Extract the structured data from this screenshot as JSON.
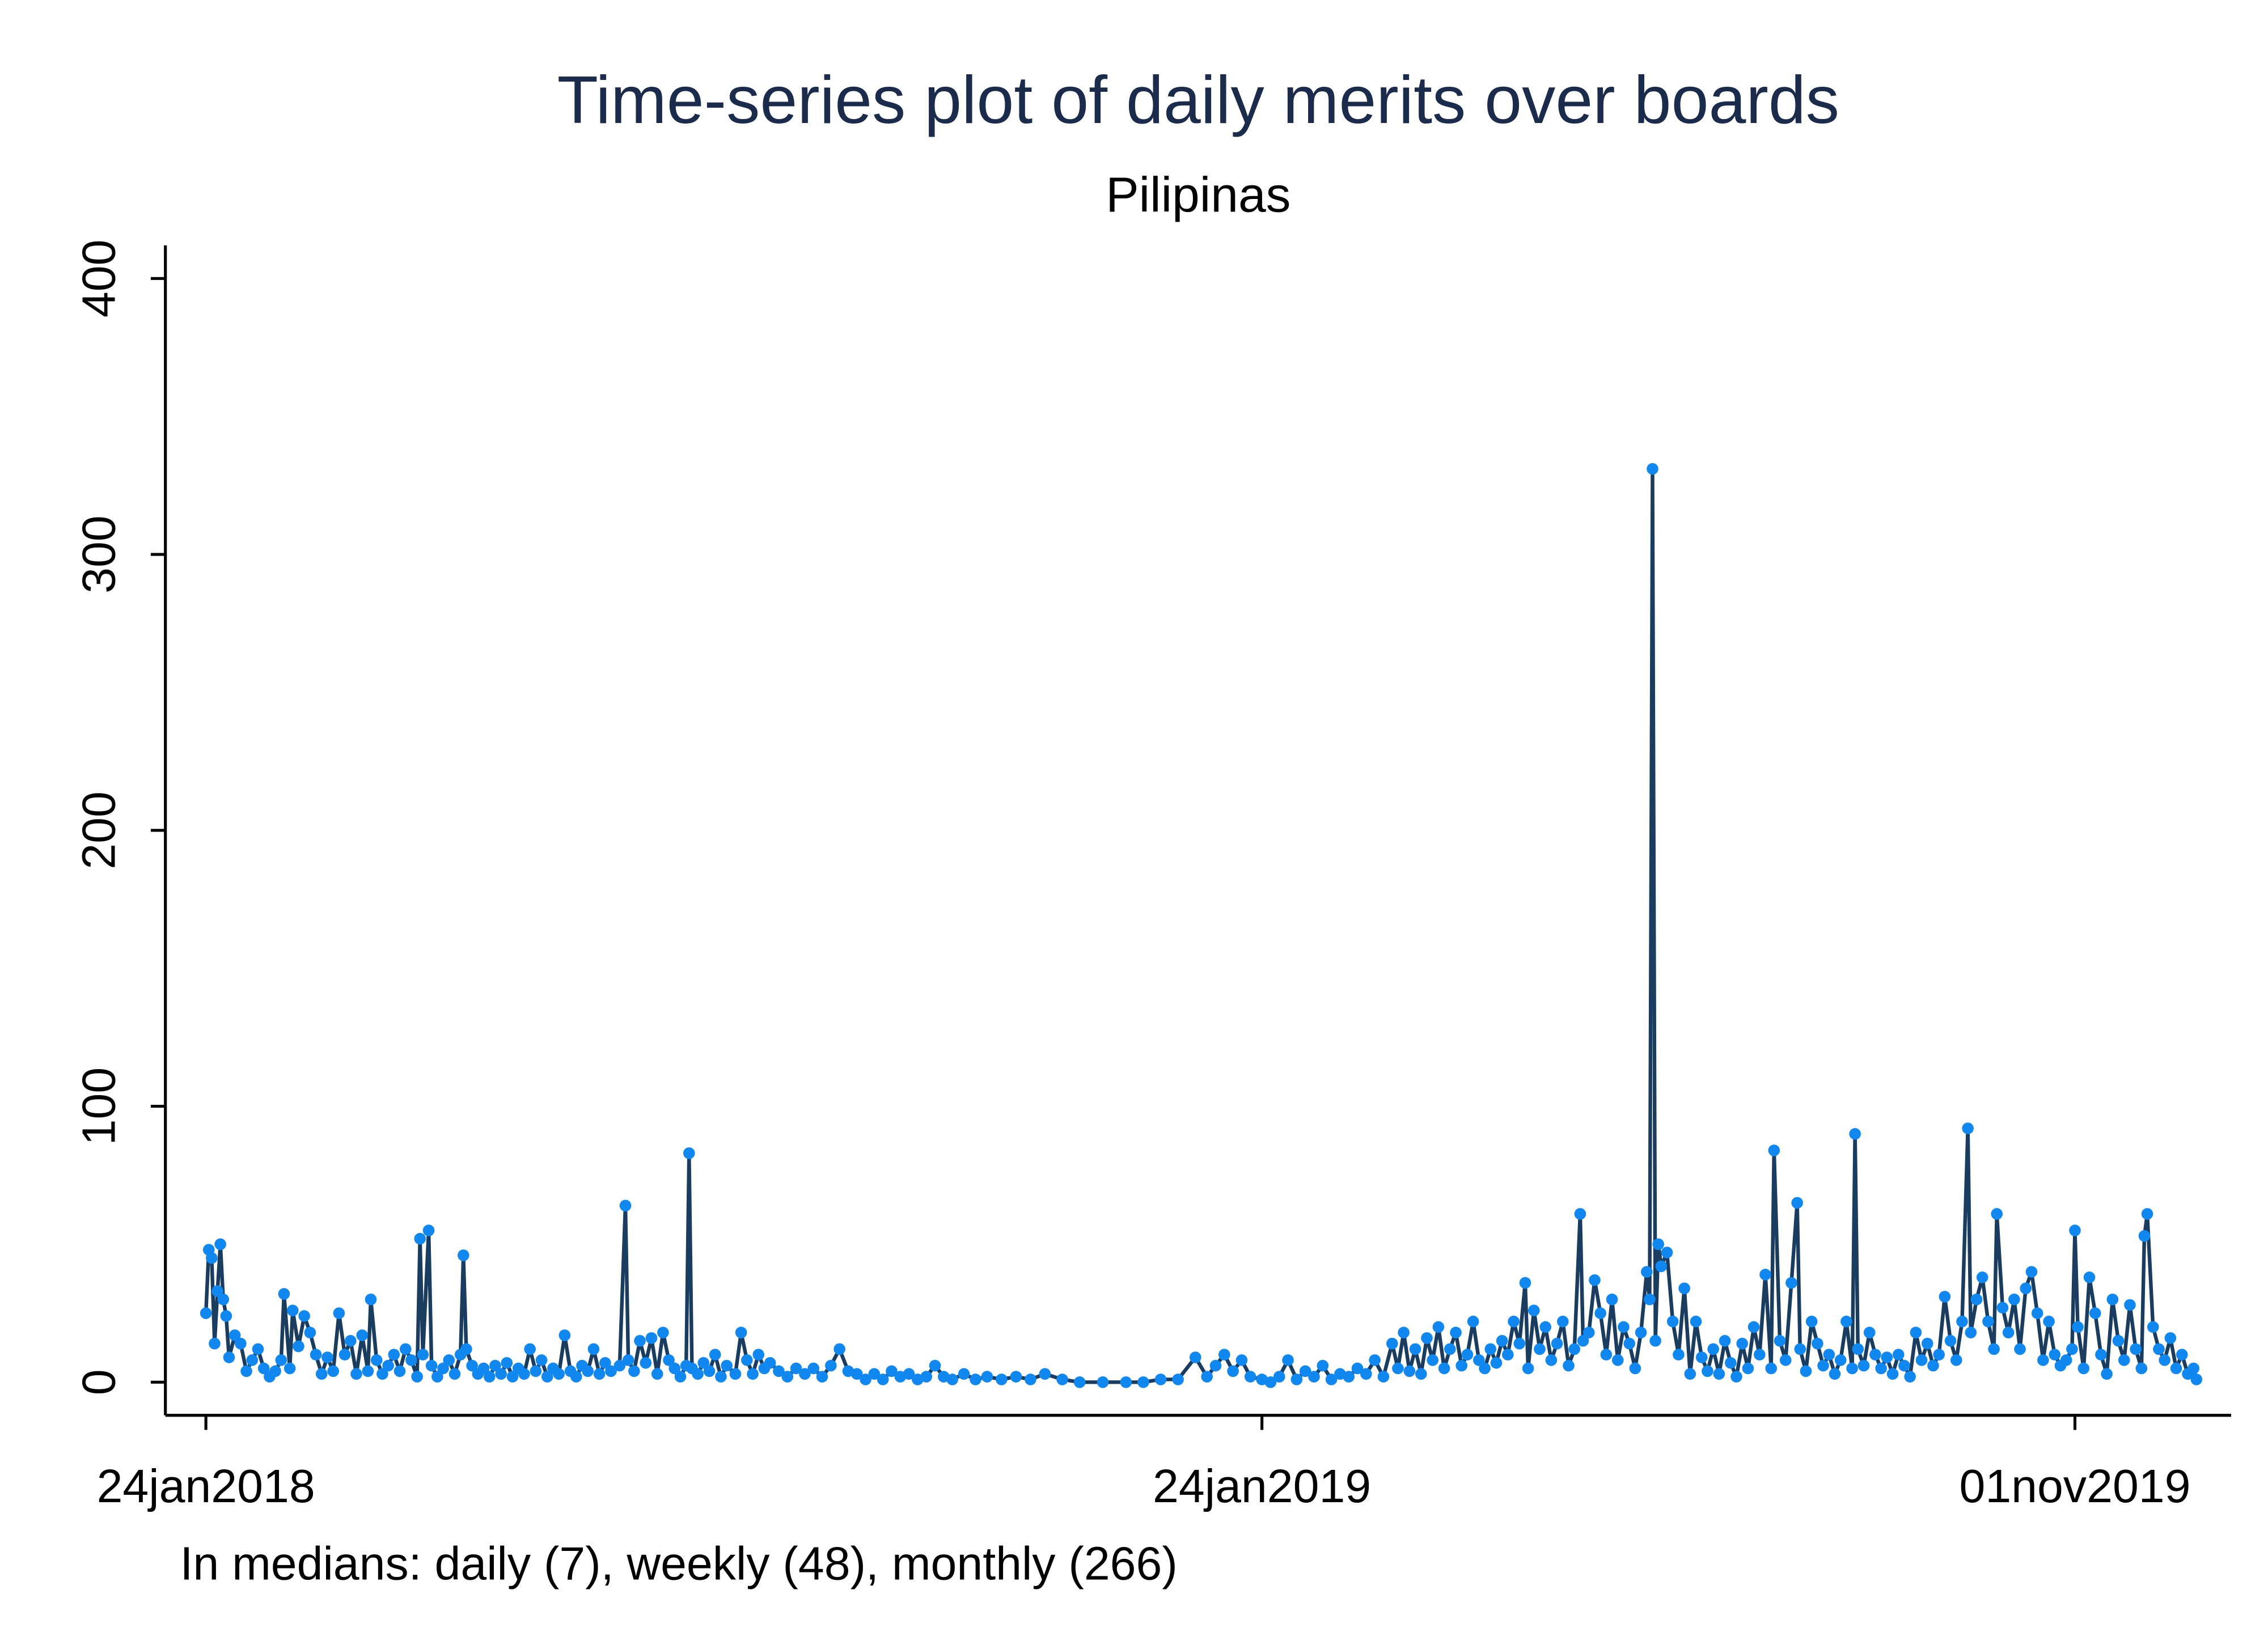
{
  "chart_data": {
    "type": "line",
    "title": "Time-series plot of daily merits over boards",
    "subtitle": "Pilipinas",
    "note": "In medians: daily (7), weekly (48), monthly (266)",
    "color": "#1a3c5e",
    "marker_color": "#1187f0",
    "title_color": "#1a2b4c",
    "xlim": [
      "2018-01-10",
      "2019-12-25"
    ],
    "xticks": [
      {
        "value": "2018-01-24",
        "label": "24jan2018"
      },
      {
        "value": "2019-01-24",
        "label": "24jan2019"
      },
      {
        "value": "2019-11-01",
        "label": "01nov2019"
      }
    ],
    "ylim": [
      -12,
      412
    ],
    "yticks": [
      0,
      100,
      200,
      300,
      400
    ],
    "x": [
      "2018-01-24",
      "2018-01-25",
      "2018-01-26",
      "2018-01-27",
      "2018-01-28",
      "2018-01-29",
      "2018-01-30",
      "2018-01-31",
      "2018-02-01",
      "2018-02-03",
      "2018-02-05",
      "2018-02-07",
      "2018-02-09",
      "2018-02-11",
      "2018-02-13",
      "2018-02-15",
      "2018-02-17",
      "2018-02-19",
      "2018-02-20",
      "2018-02-22",
      "2018-02-23",
      "2018-02-25",
      "2018-02-27",
      "2018-03-01",
      "2018-03-03",
      "2018-03-05",
      "2018-03-07",
      "2018-03-09",
      "2018-03-11",
      "2018-03-13",
      "2018-03-15",
      "2018-03-17",
      "2018-03-19",
      "2018-03-21",
      "2018-03-22",
      "2018-03-24",
      "2018-03-26",
      "2018-03-28",
      "2018-03-30",
      "2018-04-01",
      "2018-04-03",
      "2018-04-05",
      "2018-04-07",
      "2018-04-08",
      "2018-04-09",
      "2018-04-11",
      "2018-04-12",
      "2018-04-14",
      "2018-04-16",
      "2018-04-18",
      "2018-04-20",
      "2018-04-22",
      "2018-04-23",
      "2018-04-24",
      "2018-04-26",
      "2018-04-28",
      "2018-04-30",
      "2018-05-02",
      "2018-05-04",
      "2018-05-06",
      "2018-05-08",
      "2018-05-10",
      "2018-05-12",
      "2018-05-14",
      "2018-05-16",
      "2018-05-18",
      "2018-05-20",
      "2018-05-22",
      "2018-05-24",
      "2018-05-26",
      "2018-05-28",
      "2018-05-30",
      "2018-06-01",
      "2018-06-03",
      "2018-06-05",
      "2018-06-07",
      "2018-06-09",
      "2018-06-11",
      "2018-06-13",
      "2018-06-16",
      "2018-06-18",
      "2018-06-19",
      "2018-06-21",
      "2018-06-23",
      "2018-06-25",
      "2018-06-27",
      "2018-06-29",
      "2018-07-01",
      "2018-07-03",
      "2018-07-05",
      "2018-07-07",
      "2018-07-09",
      "2018-07-10",
      "2018-07-11",
      "2018-07-13",
      "2018-07-15",
      "2018-07-17",
      "2018-07-19",
      "2018-07-21",
      "2018-07-23",
      "2018-07-26",
      "2018-07-28",
      "2018-07-30",
      "2018-08-01",
      "2018-08-03",
      "2018-08-05",
      "2018-08-07",
      "2018-08-10",
      "2018-08-13",
      "2018-08-16",
      "2018-08-19",
      "2018-08-22",
      "2018-08-25",
      "2018-08-28",
      "2018-08-31",
      "2018-09-03",
      "2018-09-06",
      "2018-09-09",
      "2018-09-12",
      "2018-09-15",
      "2018-09-18",
      "2018-09-21",
      "2018-09-24",
      "2018-09-27",
      "2018-09-30",
      "2018-10-03",
      "2018-10-06",
      "2018-10-09",
      "2018-10-13",
      "2018-10-17",
      "2018-10-21",
      "2018-10-26",
      "2018-10-31",
      "2018-11-05",
      "2018-11-10",
      "2018-11-16",
      "2018-11-22",
      "2018-11-30",
      "2018-12-08",
      "2018-12-14",
      "2018-12-20",
      "2018-12-26",
      "2019-01-01",
      "2019-01-05",
      "2019-01-08",
      "2019-01-11",
      "2019-01-14",
      "2019-01-17",
      "2019-01-20",
      "2019-01-24",
      "2019-01-27",
      "2019-01-30",
      "2019-02-02",
      "2019-02-05",
      "2019-02-08",
      "2019-02-11",
      "2019-02-14",
      "2019-02-17",
      "2019-02-20",
      "2019-02-23",
      "2019-02-26",
      "2019-03-01",
      "2019-03-04",
      "2019-03-07",
      "2019-03-10",
      "2019-03-12",
      "2019-03-14",
      "2019-03-16",
      "2019-03-18",
      "2019-03-20",
      "2019-03-22",
      "2019-03-24",
      "2019-03-26",
      "2019-03-28",
      "2019-03-30",
      "2019-04-01",
      "2019-04-03",
      "2019-04-05",
      "2019-04-07",
      "2019-04-09",
      "2019-04-11",
      "2019-04-13",
      "2019-04-15",
      "2019-04-17",
      "2019-04-19",
      "2019-04-21",
      "2019-04-23",
      "2019-04-25",
      "2019-04-26",
      "2019-04-28",
      "2019-04-30",
      "2019-05-02",
      "2019-05-04",
      "2019-05-06",
      "2019-05-08",
      "2019-05-10",
      "2019-05-12",
      "2019-05-14",
      "2019-05-15",
      "2019-05-17",
      "2019-05-19",
      "2019-05-21",
      "2019-05-23",
      "2019-05-25",
      "2019-05-27",
      "2019-05-29",
      "2019-05-31",
      "2019-06-02",
      "2019-06-04",
      "2019-06-06",
      "2019-06-07",
      "2019-06-08",
      "2019-06-09",
      "2019-06-10",
      "2019-06-11",
      "2019-06-13",
      "2019-06-15",
      "2019-06-17",
      "2019-06-19",
      "2019-06-21",
      "2019-06-23",
      "2019-06-25",
      "2019-06-27",
      "2019-06-29",
      "2019-07-01",
      "2019-07-03",
      "2019-07-05",
      "2019-07-07",
      "2019-07-09",
      "2019-07-11",
      "2019-07-13",
      "2019-07-15",
      "2019-07-17",
      "2019-07-19",
      "2019-07-20",
      "2019-07-22",
      "2019-07-24",
      "2019-07-26",
      "2019-07-28",
      "2019-07-29",
      "2019-07-31",
      "2019-08-02",
      "2019-08-04",
      "2019-08-06",
      "2019-08-08",
      "2019-08-10",
      "2019-08-12",
      "2019-08-14",
      "2019-08-16",
      "2019-08-17",
      "2019-08-18",
      "2019-08-20",
      "2019-08-22",
      "2019-08-24",
      "2019-08-26",
      "2019-08-28",
      "2019-08-30",
      "2019-09-01",
      "2019-09-03",
      "2019-09-05",
      "2019-09-07",
      "2019-09-09",
      "2019-09-11",
      "2019-09-13",
      "2019-09-15",
      "2019-09-17",
      "2019-09-19",
      "2019-09-21",
      "2019-09-23",
      "2019-09-25",
      "2019-09-26",
      "2019-09-28",
      "2019-09-30",
      "2019-10-02",
      "2019-10-04",
      "2019-10-05",
      "2019-10-07",
      "2019-10-09",
      "2019-10-11",
      "2019-10-13",
      "2019-10-15",
      "2019-10-17",
      "2019-10-19",
      "2019-10-21",
      "2019-10-23",
      "2019-10-25",
      "2019-10-27",
      "2019-10-29",
      "2019-10-31",
      "2019-11-01",
      "2019-11-02",
      "2019-11-04",
      "2019-11-06",
      "2019-11-08",
      "2019-11-10",
      "2019-11-12",
      "2019-11-14",
      "2019-11-16",
      "2019-11-18",
      "2019-11-20",
      "2019-11-22",
      "2019-11-24",
      "2019-11-25",
      "2019-11-26",
      "2019-11-28",
      "2019-11-30",
      "2019-12-02",
      "2019-12-04",
      "2019-12-06",
      "2019-12-08",
      "2019-12-10",
      "2019-12-12",
      "2019-12-13"
    ],
    "values": [
      25,
      48,
      45,
      14,
      33,
      50,
      30,
      24,
      9,
      17,
      14,
      4,
      8,
      12,
      5,
      2,
      4,
      8,
      32,
      5,
      26,
      13,
      24,
      18,
      10,
      3,
      9,
      4,
      25,
      10,
      15,
      3,
      17,
      4,
      30,
      8,
      3,
      6,
      10,
      4,
      12,
      8,
      2,
      52,
      10,
      55,
      6,
      2,
      5,
      8,
      3,
      10,
      46,
      12,
      6,
      3,
      5,
      2,
      6,
      3,
      7,
      2,
      5,
      3,
      12,
      4,
      8,
      2,
      5,
      3,
      17,
      4,
      2,
      6,
      4,
      12,
      3,
      7,
      4,
      6,
      64,
      8,
      4,
      15,
      7,
      16,
      3,
      18,
      8,
      5,
      2,
      6,
      83,
      5,
      3,
      7,
      4,
      10,
      2,
      6,
      3,
      18,
      8,
      3,
      10,
      5,
      7,
      4,
      2,
      5,
      3,
      5,
      2,
      6,
      12,
      4,
      3,
      1,
      3,
      1,
      4,
      2,
      3,
      1,
      2,
      6,
      2,
      1,
      3,
      1,
      2,
      1,
      2,
      1,
      3,
      1,
      0,
      0,
      0,
      0,
      1,
      1,
      9,
      2,
      6,
      10,
      4,
      8,
      2,
      1,
      0,
      2,
      8,
      1,
      4,
      2,
      6,
      1,
      3,
      2,
      5,
      3,
      8,
      2,
      14,
      5,
      18,
      4,
      12,
      3,
      16,
      8,
      20,
      5,
      12,
      18,
      6,
      10,
      22,
      8,
      5,
      12,
      7,
      15,
      10,
      22,
      14,
      36,
      5,
      26,
      12,
      20,
      8,
      14,
      22,
      6,
      12,
      61,
      15,
      18,
      37,
      25,
      10,
      30,
      8,
      20,
      14,
      5,
      18,
      40,
      30,
      331,
      15,
      50,
      42,
      47,
      22,
      10,
      34,
      3,
      22,
      9,
      4,
      12,
      3,
      15,
      7,
      2,
      14,
      5,
      20,
      10,
      39,
      5,
      84,
      15,
      8,
      36,
      65,
      12,
      4,
      22,
      14,
      6,
      10,
      3,
      8,
      22,
      5,
      90,
      12,
      6,
      18,
      10,
      5,
      9,
      3,
      10,
      6,
      2,
      18,
      8,
      14,
      6,
      10,
      31,
      15,
      8,
      22,
      92,
      18,
      30,
      38,
      22,
      12,
      61,
      27,
      18,
      30,
      12,
      34,
      40,
      25,
      8,
      22,
      10,
      6,
      8,
      12,
      55,
      20,
      5,
      38,
      25,
      10,
      3,
      30,
      15,
      8,
      28,
      12,
      5,
      53,
      61,
      20,
      12,
      8,
      16,
      5,
      10,
      3,
      5,
      1
    ]
  }
}
